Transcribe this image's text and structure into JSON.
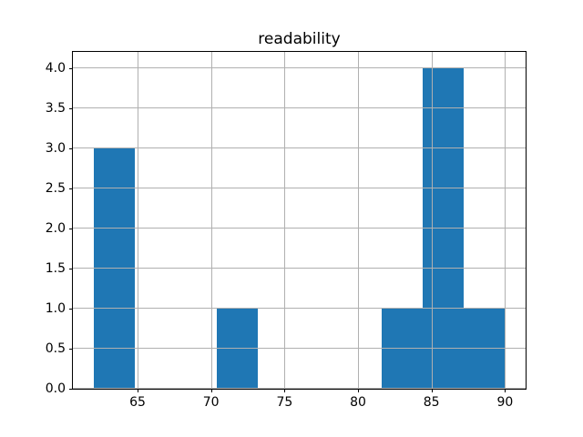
{
  "title": "readability",
  "chart_data": {
    "type": "histogram",
    "title": "readability",
    "xlabel": "",
    "ylabel": "",
    "bin_edges": [
      62.0,
      64.8,
      67.6,
      70.4,
      73.2,
      76.0,
      78.8,
      81.6,
      84.4,
      87.2,
      90.0
    ],
    "counts": [
      3,
      0,
      0,
      1,
      0,
      0,
      0,
      1,
      4,
      1
    ],
    "x_ticks": [
      65,
      70,
      75,
      80,
      85,
      90
    ],
    "x_tick_labels": [
      "65",
      "70",
      "75",
      "80",
      "85",
      "90"
    ],
    "y_ticks": [
      0.0,
      0.5,
      1.0,
      1.5,
      2.0,
      2.5,
      3.0,
      3.5,
      4.0
    ],
    "y_tick_labels": [
      "0.0",
      "0.5",
      "1.0",
      "1.5",
      "2.0",
      "2.5",
      "3.0",
      "3.5",
      "4.0"
    ],
    "xlim": [
      60.6,
      91.4
    ],
    "ylim": [
      0,
      4.2
    ],
    "grid": true,
    "legend": false,
    "bar_color": "#1f77b4",
    "grid_color": "#b0b0b0",
    "spine_color": "#000000",
    "text_color": "#000000"
  }
}
